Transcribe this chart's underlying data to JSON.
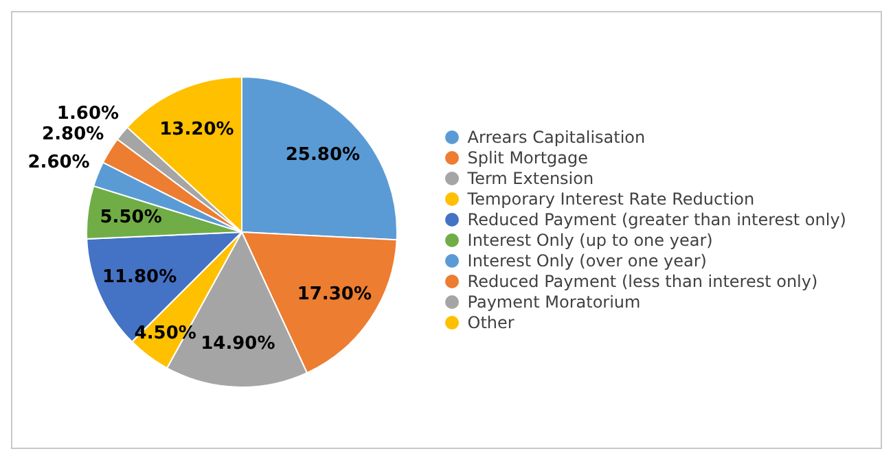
{
  "chart_data": {
    "type": "pie",
    "categories": [
      "Arrears Capitalisation",
      "Split Mortgage",
      "Term Extension",
      "Temporary Interest Rate Reduction",
      "Reduced Payment (greater than interest only)",
      "Interest Only (up to one year)",
      "Interest Only (over one year)",
      "Reduced Payment (less than interest only)",
      "Payment Moratorium",
      "Other"
    ],
    "values": [
      25.8,
      17.3,
      14.9,
      4.5,
      11.8,
      5.5,
      2.6,
      2.8,
      1.6,
      13.2
    ],
    "colors": [
      "#5b9bd5",
      "#ed7d31",
      "#a5a5a5",
      "#ffc000",
      "#4472c4",
      "#70ad47",
      "#5b9bd5",
      "#ed7d31",
      "#a5a5a5",
      "#ffc000"
    ],
    "value_labels": [
      "25.80%",
      "17.30%",
      "14.90%",
      "4.50%",
      "11.80%",
      "5.50%",
      "2.60%",
      "2.80%",
      "1.60%",
      "13.20%"
    ],
    "legend": "right"
  }
}
